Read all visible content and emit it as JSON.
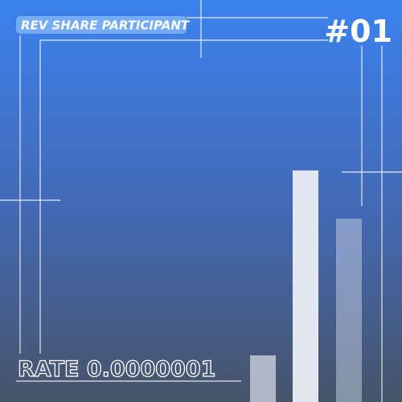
{
  "badge": "REV SHARE PARTICIPANT",
  "number": "#01",
  "rate": "RATE 0.0000001"
}
